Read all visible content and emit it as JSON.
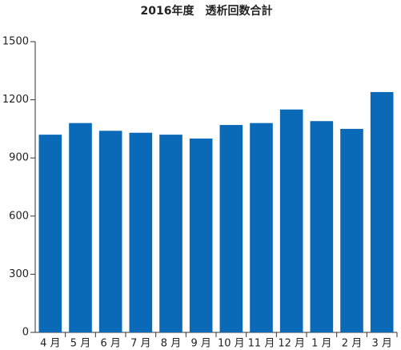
{
  "chart_data": {
    "type": "bar",
    "title": "2016年度　透析回数合計",
    "categories": [
      "4 月",
      "5 月",
      "6 月",
      "7 月",
      "8 月",
      "9 月",
      "10 月",
      "11 月",
      "12 月",
      "1 月",
      "2 月",
      "3 月"
    ],
    "values": [
      1020,
      1080,
      1040,
      1030,
      1020,
      1000,
      1070,
      1080,
      1150,
      1090,
      1050,
      1240
    ],
    "color": "#0a6ab8",
    "ylim": [
      0,
      1500
    ],
    "yticks": [
      0,
      300,
      600,
      900,
      1200,
      1500
    ],
    "grid": false
  }
}
